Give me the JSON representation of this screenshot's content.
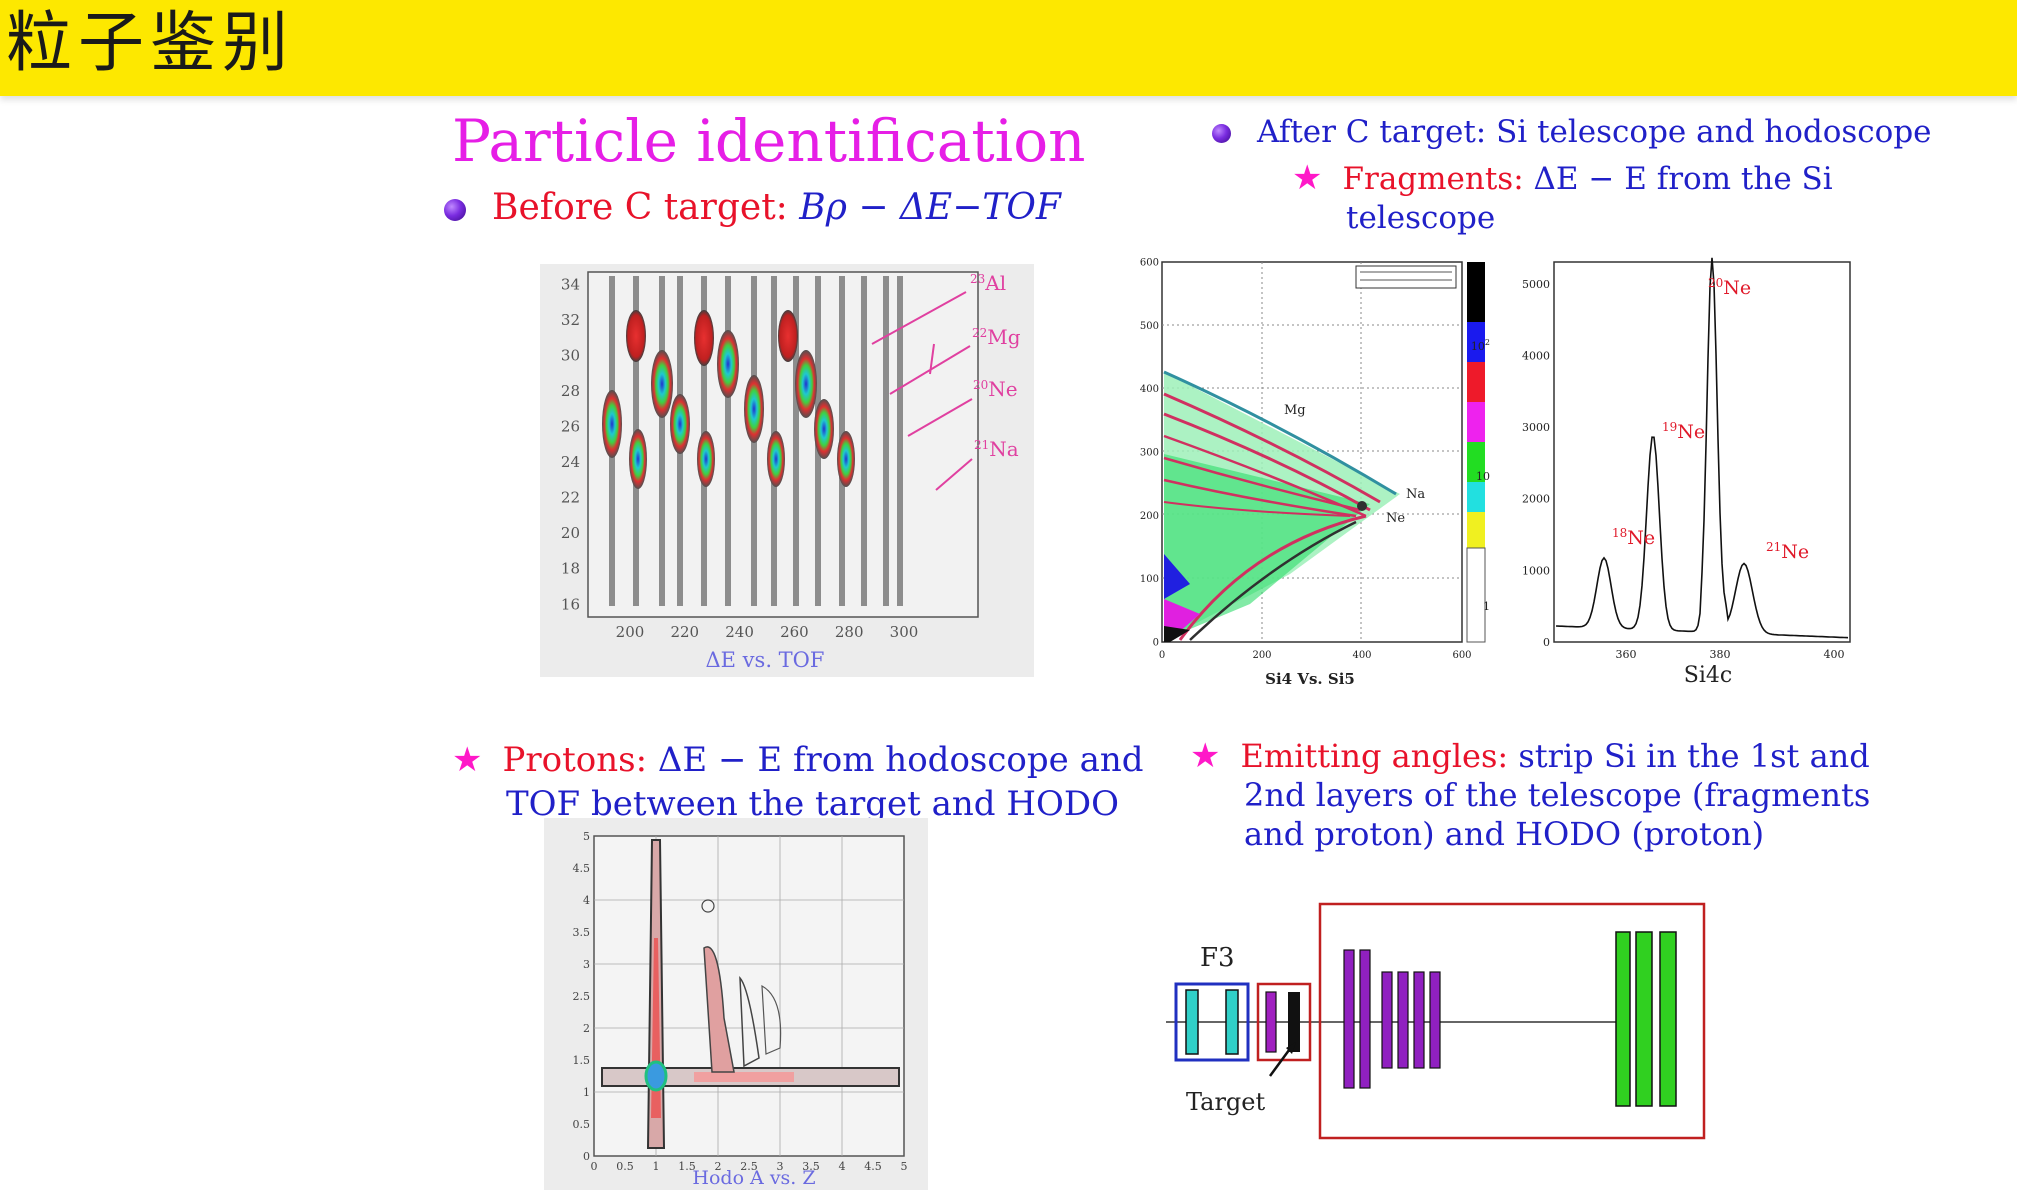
{
  "header": {
    "title": "粒子鉴别"
  },
  "main_title": "Particle identification",
  "before": {
    "label": "Before C target:",
    "formula": "Bρ − ΔE−TOF"
  },
  "after": {
    "text": "After C target: Si telescope and hodoscope"
  },
  "fragments": {
    "label": "Fragments:",
    "formula": "ΔE − E",
    "text1": "from the Si",
    "text2": "telescope"
  },
  "protons": {
    "label": "Protons:",
    "formula": "ΔE − E",
    "text1": "from hodoscope and",
    "text2": "TOF between the target and HODO"
  },
  "angles": {
    "label": "Emitting angles:",
    "text1": "strip Si in the 1st and",
    "text2": "2nd layers of the telescope (fragments",
    "text3": "and proton) and HODO (proton)"
  },
  "plot_tof": {
    "caption": "ΔE vs. TOF",
    "y_ticks": [
      "34",
      "32",
      "30",
      "28",
      "26",
      "24",
      "22",
      "20",
      "18",
      "16"
    ],
    "x_ticks": [
      "200",
      "220",
      "240",
      "260",
      "280",
      "300"
    ],
    "isotopes": [
      {
        "mass": "23",
        "sym": "Al"
      },
      {
        "mass": "22",
        "sym": "Mg"
      },
      {
        "mass": "20",
        "sym": "Ne"
      },
      {
        "mass": "21",
        "sym": "Na"
      }
    ]
  },
  "plot_si": {
    "caption": "Si4 Vs. Si5",
    "y_ticks": [
      "600",
      "500",
      "400",
      "300",
      "200",
      "100",
      "0"
    ],
    "x_ticks": [
      "0",
      "200",
      "400",
      "600"
    ],
    "labels": {
      "mg": "Mg",
      "na": "Na",
      "ne": "Ne"
    },
    "scale": {
      "top": "10",
      "top_exp": "2",
      "mid": "10",
      "low": "1"
    }
  },
  "plot_spec": {
    "caption": "Si4c",
    "y_ticks": [
      "5000",
      "4000",
      "3000",
      "2000",
      "1000",
      "0"
    ],
    "x_ticks": [
      "360",
      "380",
      "400"
    ],
    "peaks": [
      {
        "mass": "20",
        "sym": "Ne"
      },
      {
        "mass": "19",
        "sym": "Ne"
      },
      {
        "mass": "18",
        "sym": "Ne"
      },
      {
        "mass": "21",
        "sym": "Ne"
      }
    ]
  },
  "plot_hodo": {
    "caption": "Hodo A vs. Z",
    "y_ticks": [
      "5",
      "4.5",
      "4",
      "3.5",
      "3",
      "2.5",
      "2",
      "1.5",
      "1",
      "0.5",
      "0"
    ],
    "x_ticks": [
      "0",
      "0.5",
      "1",
      "1.5",
      "2",
      "2.5",
      "3",
      "3.5",
      "4",
      "4.5",
      "5"
    ]
  },
  "setup": {
    "f3_label": "F3",
    "target_label": "Target"
  }
}
